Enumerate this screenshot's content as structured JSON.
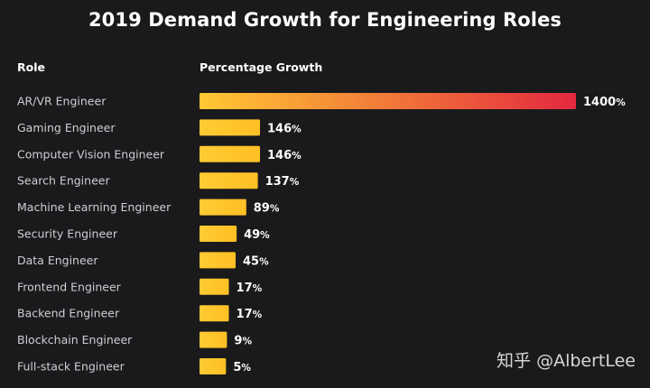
{
  "chart_data": {
    "type": "bar",
    "orientation": "horizontal",
    "title": "2019 Demand Growth for Engineering Roles",
    "category_header": "Role",
    "value_header": "Percentage Growth",
    "value_suffix": "%",
    "categories": [
      "AR/VR Engineer",
      "Gaming Engineer",
      "Computer Vision Engineer",
      "Search Engineer",
      "Machine Learning Engineer",
      "Security Engineer",
      "Data Engineer",
      "Frontend Engineer",
      "Backend Engineer",
      "Blockchain Engineer",
      "Full-stack Engineer"
    ],
    "values": [
      1400,
      146,
      146,
      137,
      89,
      49,
      45,
      17,
      17,
      9,
      5
    ],
    "xlim": [
      0,
      1400
    ],
    "grid": false,
    "legend": "none",
    "colors": {
      "bar_start": "#ffc933",
      "bar_end_max": "#e4283f",
      "background": "#1a1a1c"
    }
  },
  "watermark": "知乎 @AlbertLee"
}
